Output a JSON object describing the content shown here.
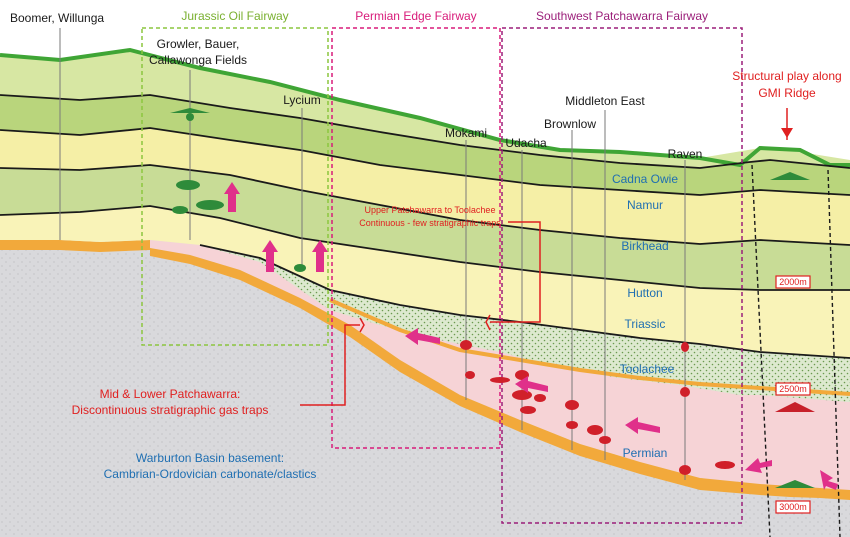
{
  "fairways": {
    "jurassic": "Jurassic Oil Fairway",
    "permian_edge": "Permian Edge Fairway",
    "southwest": "Southwest Patchawarra Fairway"
  },
  "wells": {
    "boomer": "Boomer, Willunga",
    "growler_1": "Growler, Bauer,",
    "growler_2": "Callawonga Fields",
    "lycium": "Lycium",
    "mokami": "Mokami",
    "udacha": "Udacha",
    "brownlow": "Brownlow",
    "middleton": "Middleton East",
    "raven": "Raven"
  },
  "structural_play": {
    "line1": "Structural play along",
    "line2": "GMI Ridge"
  },
  "formations": {
    "cadna_owie": "Cadna Owie",
    "namur": "Namur",
    "birkhead": "Birkhead",
    "hutton": "Hutton",
    "triassic": "Triassic",
    "toolachee": "Toolachee",
    "permian": "Permian"
  },
  "annotations": {
    "upper_1": "Upper Patchawarra to Toolachee",
    "upper_2": "Continuous - few stratigraphic traps",
    "mid_1": "Mid & Lower Patchawarra:",
    "mid_2": "Discontinuous stratigraphic gas traps",
    "basement_1": "Warburton Basin basement:",
    "basement_2": "Cambrian-Ordovician carbonate/clastics"
  },
  "depths": {
    "d2000": "2000m",
    "d2500": "2500m",
    "d3000": "3000m"
  },
  "colors": {
    "jurassic_fairway": "#8cc63f",
    "edge_fairway": "#d81b7a",
    "southwest_fairway": "#9b1f7a",
    "annotation_red": "#e02020",
    "formation_blue": "#1f6fb2",
    "oil_green": "#2e8b3a",
    "gas_red": "#d0202a",
    "arrow_magenta": "#e0308a"
  }
}
